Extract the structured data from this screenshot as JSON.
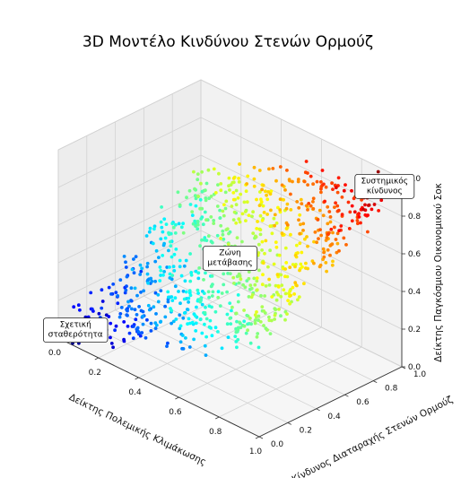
{
  "chart_data": {
    "type": "scatter",
    "title": "3D Μοντέλο Κινδύνου Στενών Ορμούζ",
    "xlabel": "Δείκτης Πολεμικής Κλιμάκωσης",
    "ylabel": "Κίνδυνος Διαταραχής Στενών Ορμούζ",
    "zlabel": "Δείκτης Παγκόσμιου Οικονομικού Σοκ",
    "xlim": [
      0,
      1
    ],
    "ylim": [
      0,
      1
    ],
    "zlim": [
      0,
      1
    ],
    "x_ticks": [
      "0.0",
      "0.2",
      "0.4",
      "0.6",
      "0.8",
      "1.0"
    ],
    "y_ticks": [
      "0.0",
      "0.2",
      "0.4",
      "0.6",
      "0.8",
      "1.0"
    ],
    "z_ticks": [
      "0.0",
      "0.2",
      "0.4",
      "0.6",
      "0.8",
      "1.0"
    ],
    "grid": true,
    "colormap": "jet",
    "color_by": "z",
    "n_points": 900,
    "surface_relation": "z ≈ (x + y) / 2 rising steeply from low (dark blue) to high (dark red)",
    "annotations": [
      {
        "text_lines": [
          "Σχετική",
          "σταθερότητα"
        ],
        "x": 0.05,
        "y": 0.05,
        "z": 0.05
      },
      {
        "text_lines": [
          "Ζώνη",
          "μετάβασης"
        ],
        "x": 0.5,
        "y": 0.5,
        "z": 0.5
      },
      {
        "text_lines": [
          "Συστημικός",
          "κίνδυνος"
        ],
        "x": 0.95,
        "y": 0.95,
        "z": 0.95
      }
    ]
  }
}
